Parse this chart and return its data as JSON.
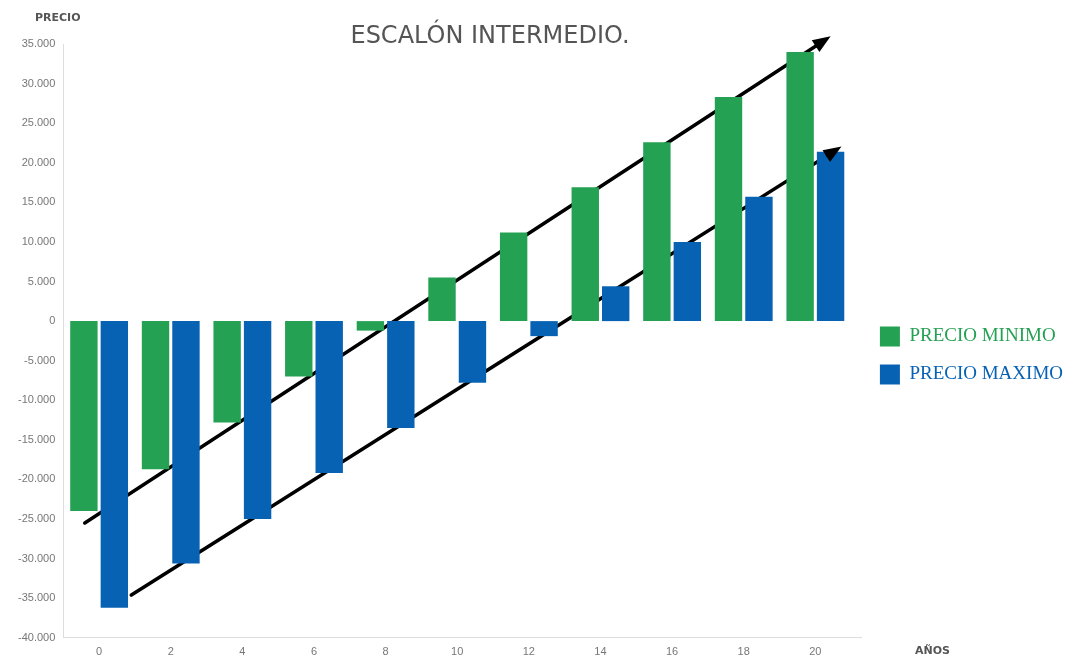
{
  "chart_data": {
    "type": "bar",
    "title": "ESCALÓN INTERMEDIO.",
    "xlabel": "AÑOS",
    "ylabel": "PRECIO",
    "x": [
      0,
      2,
      4,
      6,
      8,
      10,
      12,
      14,
      16,
      18,
      20
    ],
    "series": [
      {
        "name": "PRECIO MINIMO",
        "color": "#24a152",
        "values": [
          -24000,
          -18700,
          -12800,
          -7000,
          -1200,
          5500,
          11200,
          16900,
          22600,
          28300,
          34000
        ]
      },
      {
        "name": "PRECIO MAXIMO",
        "color": "#0762b4",
        "values": [
          -36200,
          -30600,
          -25000,
          -19200,
          -13500,
          -7800,
          -1900,
          4400,
          10000,
          15700,
          21400
        ]
      },
      {
        "type": "line",
        "color": "#000000",
        "x": [
          -0.4,
          20.1
        ],
        "values": [
          -25500,
          35000
        ]
      },
      {
        "type": "line",
        "color": "#000000",
        "x": [
          0.9,
          20.4
        ],
        "values": [
          -34600,
          21100
        ]
      }
    ],
    "xlim": [
      -1,
      21.3
    ],
    "xticks": [
      0,
      2,
      4,
      6,
      8,
      10,
      12,
      14,
      16,
      18,
      20
    ],
    "ylim": [
      -40000,
      35000
    ],
    "yticks": [
      {
        "value": -40000,
        "label": "-40.000"
      },
      {
        "value": -35000,
        "label": "-35.000"
      },
      {
        "value": -30000,
        "label": "-30.000"
      },
      {
        "value": -25000,
        "label": "-25.000"
      },
      {
        "value": -20000,
        "label": "-20.000"
      },
      {
        "value": -15000,
        "label": "-15.000"
      },
      {
        "value": -10000,
        "label": "-10.000"
      },
      {
        "value": -5000,
        "label": "-5.000"
      },
      0,
      {
        "value": 5000,
        "label": "5.000"
      },
      {
        "value": 10000,
        "label": "10.000"
      },
      {
        "value": 15000,
        "label": "15.000"
      },
      {
        "value": 20000,
        "label": "20.000"
      },
      {
        "value": 25000,
        "label": "25.000"
      },
      {
        "value": 30000,
        "label": "30.000"
      },
      {
        "value": 35000,
        "label": "35.000"
      }
    ],
    "grid": false,
    "legend": "right"
  }
}
